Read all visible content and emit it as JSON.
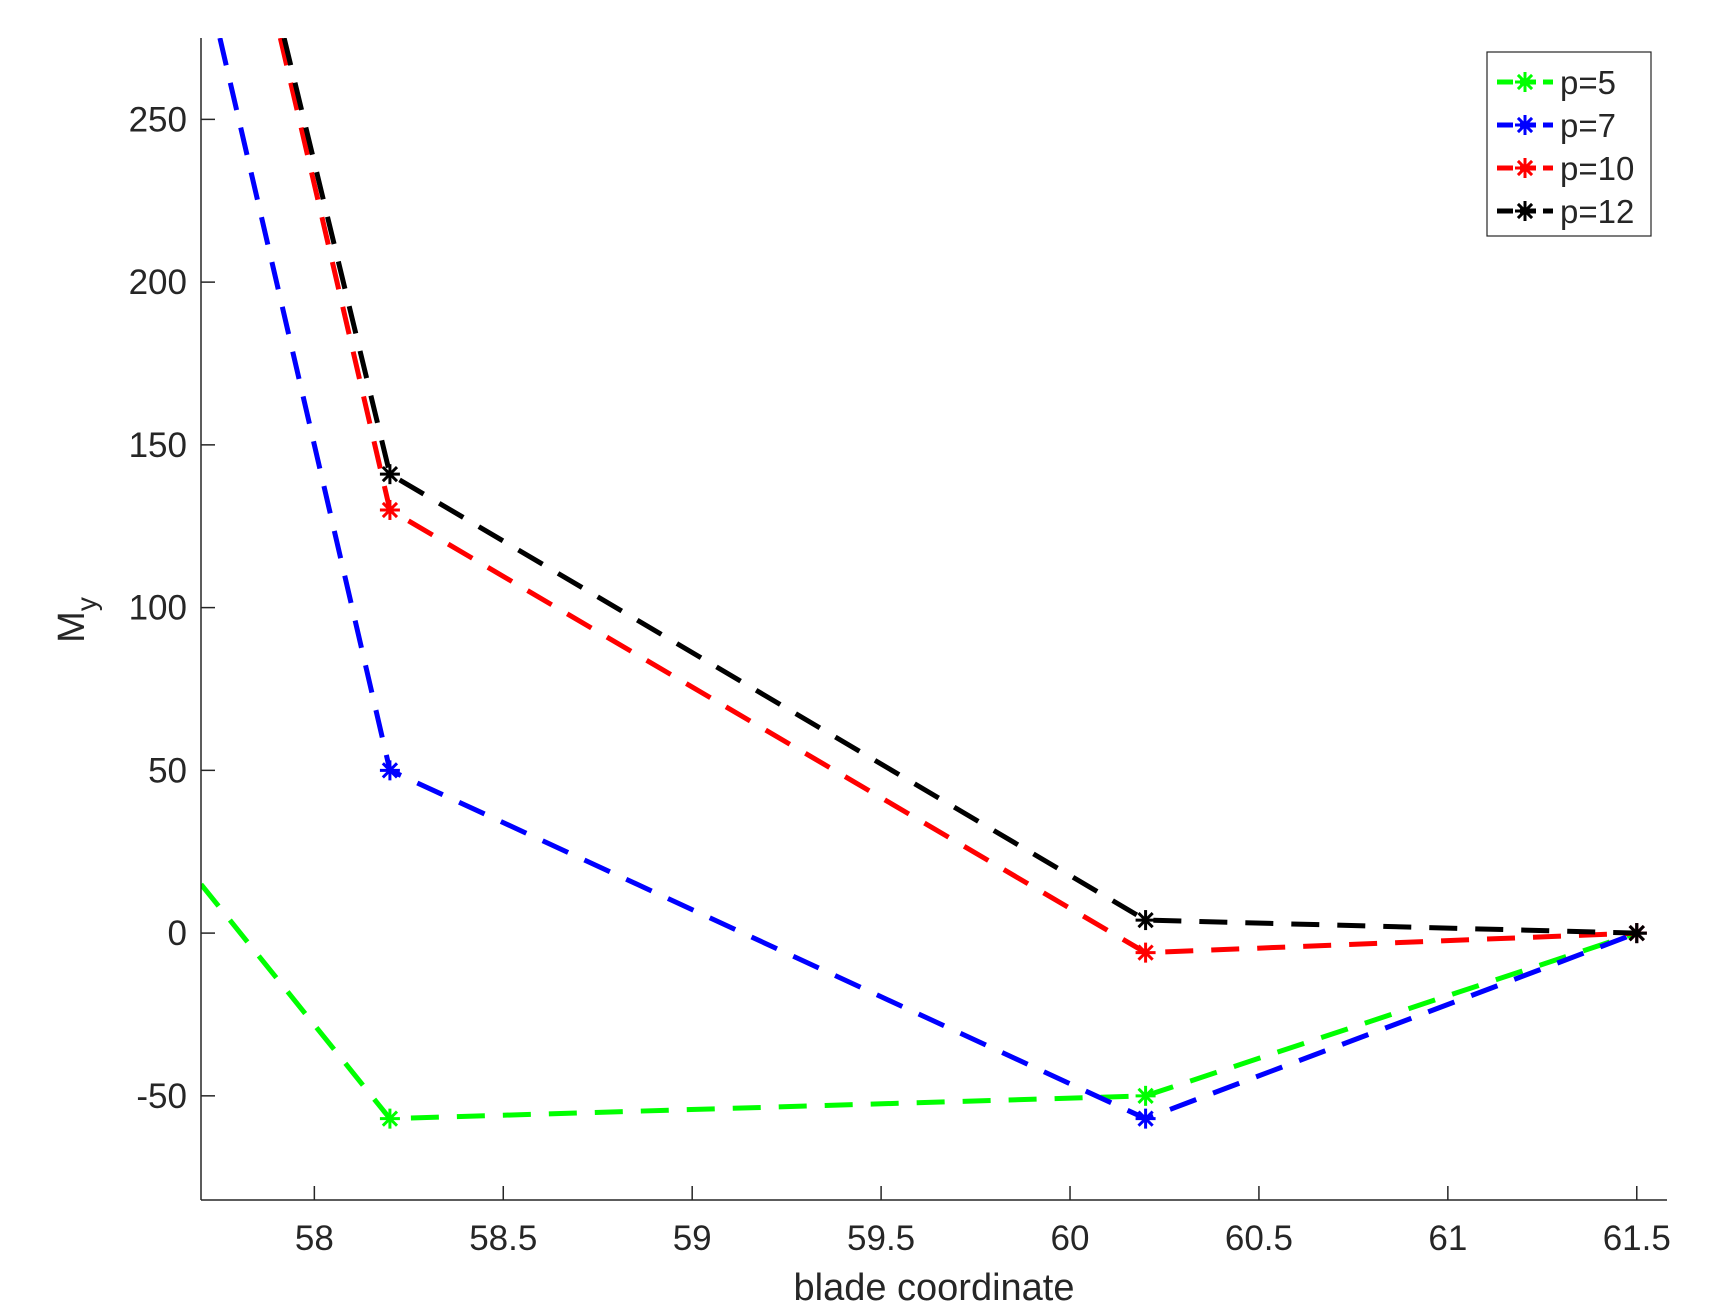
{
  "chart_data": {
    "type": "line",
    "xlabel": "blade coordinate",
    "ylabel_main": "M",
    "ylabel_sub": "y",
    "xlim": [
      57.7,
      61.58
    ],
    "ylim": [
      -82,
      275
    ],
    "xticks": [
      58,
      58.5,
      59,
      59.5,
      60,
      60.5,
      61,
      61.5
    ],
    "xtick_labels": [
      "58",
      "58.5",
      "59",
      "59.5",
      "60",
      "60.5",
      "61",
      "61.5"
    ],
    "yticks": [
      -50,
      0,
      50,
      100,
      150,
      200,
      250
    ],
    "ytick_labels": [
      "-50",
      "0",
      "50",
      "100",
      "150",
      "200",
      "250"
    ],
    "grid": false,
    "legend_position": "top-right",
    "series": [
      {
        "name": "p=5",
        "color": "#00ff00",
        "x": [
          57.7,
          58.2,
          60.2,
          61.5
        ],
        "y": [
          15,
          -57,
          -50,
          0
        ],
        "markers": [
          false,
          true,
          true,
          true
        ]
      },
      {
        "name": "p=7",
        "color": "#0000ff",
        "x": [
          57.75,
          58.2,
          60.2,
          61.5
        ],
        "y": [
          275,
          50,
          -57,
          0
        ],
        "markers": [
          false,
          true,
          true,
          true
        ]
      },
      {
        "name": "p=10",
        "color": "#ff0000",
        "x": [
          57.91,
          58.2,
          60.2,
          61.5
        ],
        "y": [
          275,
          130,
          -6,
          0
        ],
        "markers": [
          false,
          true,
          true,
          true
        ]
      },
      {
        "name": "p=12",
        "color": "#000000",
        "x": [
          57.92,
          58.2,
          60.2,
          61.5
        ],
        "y": [
          275,
          141,
          4,
          0
        ],
        "markers": [
          false,
          true,
          true,
          true
        ]
      }
    ]
  }
}
